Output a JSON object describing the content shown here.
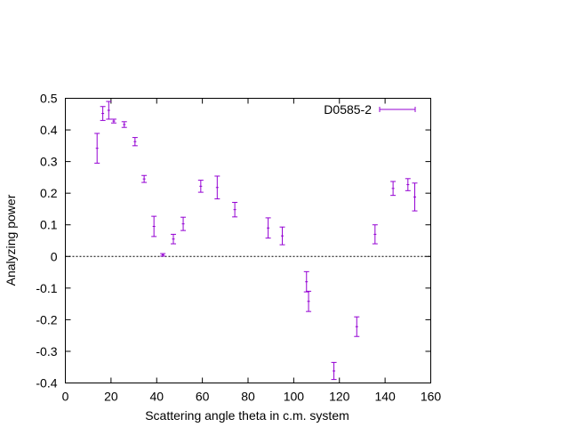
{
  "chart_data": {
    "type": "scatter",
    "title": "",
    "xlabel": "Scattering angle theta in c.m. system",
    "ylabel": "Analyzing power",
    "xlim": [
      0,
      160
    ],
    "ylim": [
      -0.4,
      0.5
    ],
    "xticks": [
      0,
      20,
      40,
      60,
      80,
      100,
      120,
      140,
      160
    ],
    "xtick_labels": [
      "0",
      "20",
      "40",
      "60",
      "80",
      "100",
      "120",
      "140",
      "160"
    ],
    "yticks": [
      -0.4,
      -0.3,
      -0.2,
      -0.1,
      0,
      0.1,
      0.2,
      0.3,
      0.4,
      0.5
    ],
    "ytick_labels": [
      "-0.4",
      "-0.3",
      "-0.2",
      "-0.1",
      "0",
      "0.1",
      "0.2",
      "0.3",
      "0.4",
      "0.5"
    ],
    "grid": false,
    "zero_line": true,
    "legend_position": "top-right",
    "series": [
      {
        "name": "D0585-2",
        "color": "#9400d3",
        "marker": "errorbar",
        "points": [
          {
            "x": 13.9,
            "y": 0.342,
            "err": 0.047
          },
          {
            "x": 16.4,
            "y": 0.452,
            "err": 0.022
          },
          {
            "x": 19.0,
            "y": 0.462,
            "err": 0.028
          },
          {
            "x": 21.2,
            "y": 0.428,
            "err": 0.006
          },
          {
            "x": 25.8,
            "y": 0.417,
            "err": 0.009
          },
          {
            "x": 30.5,
            "y": 0.363,
            "err": 0.013
          },
          {
            "x": 34.5,
            "y": 0.245,
            "err": 0.011
          },
          {
            "x": 38.8,
            "y": 0.095,
            "err": 0.032
          },
          {
            "x": 42.7,
            "y": 0.005,
            "err": 0.004
          },
          {
            "x": 47.3,
            "y": 0.055,
            "err": 0.015
          },
          {
            "x": 51.6,
            "y": 0.103,
            "err": 0.021
          },
          {
            "x": 59.3,
            "y": 0.222,
            "err": 0.019
          },
          {
            "x": 66.5,
            "y": 0.218,
            "err": 0.036
          },
          {
            "x": 74.2,
            "y": 0.148,
            "err": 0.023
          },
          {
            "x": 88.8,
            "y": 0.09,
            "err": 0.032
          },
          {
            "x": 95.0,
            "y": 0.065,
            "err": 0.028
          },
          {
            "x": 105.6,
            "y": -0.08,
            "err": 0.032
          },
          {
            "x": 106.5,
            "y": -0.142,
            "err": 0.032
          },
          {
            "x": 117.6,
            "y": -0.362,
            "err": 0.027
          },
          {
            "x": 127.6,
            "y": -0.222,
            "err": 0.031
          },
          {
            "x": 135.6,
            "y": 0.07,
            "err": 0.03
          },
          {
            "x": 143.5,
            "y": 0.215,
            "err": 0.022
          },
          {
            "x": 150.0,
            "y": 0.227,
            "err": 0.019
          },
          {
            "x": 153.0,
            "y": 0.188,
            "err": 0.044
          }
        ]
      }
    ]
  }
}
